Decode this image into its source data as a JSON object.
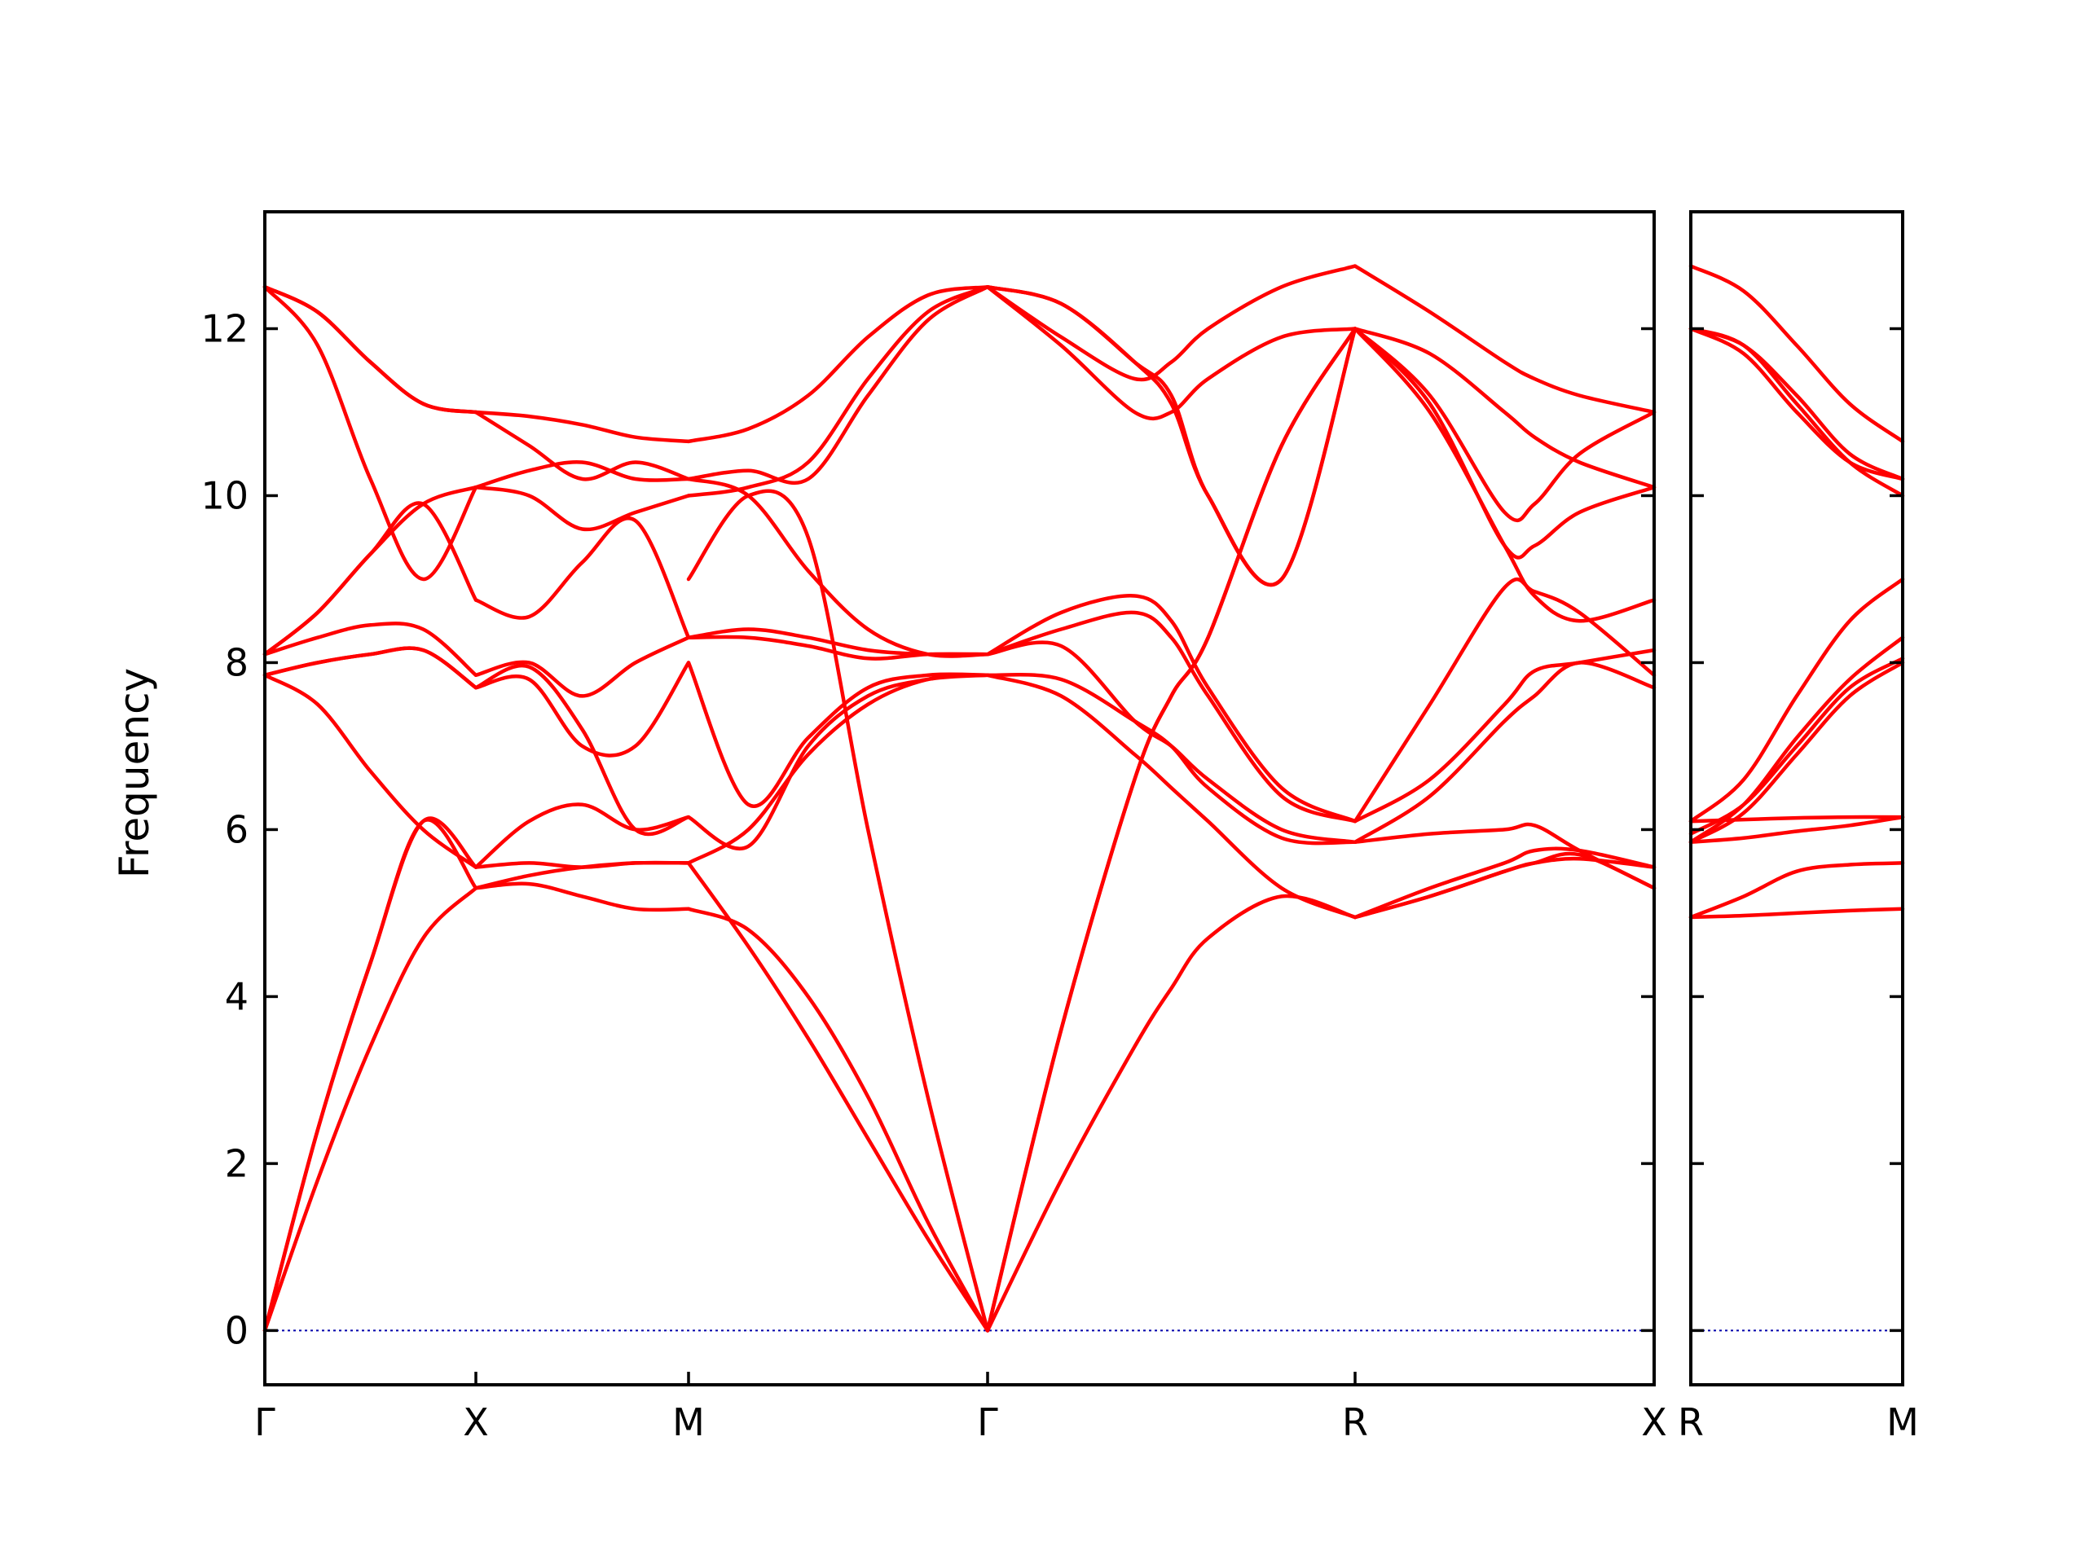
{
  "chart_data": {
    "type": "line",
    "ylabel": "Frequency",
    "xlabel": "",
    "ylim": [
      -0.65,
      13.4
    ],
    "yticks": [
      0,
      2,
      4,
      6,
      8,
      10,
      12
    ],
    "grid": false,
    "legend": "none",
    "colors": {
      "band": "#ff0000",
      "zero_line": "#0000aa",
      "frame": "#000000"
    },
    "panels": [
      {
        "id": "left",
        "x_labels": [
          "Γ",
          "X",
          "M",
          "Γ",
          "R",
          "X"
        ],
        "band_count": 12,
        "segments": [
          {
            "from": "Γ",
            "to": "X",
            "t": [
              0,
              0.25,
              0.5,
              0.75,
              1
            ],
            "bands": [
              [
                0,
                1.8,
                3.4,
                4.7,
                5.3
              ],
              [
                0,
                2.4,
                4.4,
                6.1,
                5.3
              ],
              [
                0,
                2.4,
                4.4,
                6.1,
                5.55
              ],
              [
                7.85,
                7.5,
                6.7,
                6.0,
                5.55
              ],
              [
                7.85,
                8.0,
                8.1,
                8.15,
                7.7
              ],
              [
                7.85,
                8.0,
                8.1,
                8.15,
                7.7
              ],
              [
                8.1,
                8.3,
                8.45,
                8.4,
                7.85
              ],
              [
                8.1,
                8.6,
                9.3,
                9.9,
                8.75
              ],
              [
                8.1,
                8.6,
                9.3,
                9.9,
                10.1
              ],
              [
                12.5,
                11.8,
                10.2,
                9.0,
                10.1
              ],
              [
                12.5,
                12.2,
                11.6,
                11.1,
                11.0
              ],
              [
                12.5,
                12.2,
                11.6,
                11.1,
                11.0
              ]
            ]
          },
          {
            "from": "X",
            "to": "M",
            "t": [
              0,
              0.25,
              0.5,
              0.75,
              1
            ],
            "bands": [
              [
                5.3,
                5.35,
                5.2,
                5.05,
                5.05
              ],
              [
                5.3,
                5.45,
                5.55,
                5.6,
                5.6
              ],
              [
                5.55,
                5.6,
                5.55,
                5.6,
                5.6
              ],
              [
                5.55,
                6.1,
                6.3,
                6.0,
                6.15
              ],
              [
                7.7,
                7.95,
                7.2,
                6.0,
                6.15
              ],
              [
                7.7,
                7.8,
                7.0,
                7.0,
                8.0
              ],
              [
                7.85,
                8.0,
                7.6,
                8.0,
                8.3
              ],
              [
                8.75,
                8.55,
                9.2,
                9.7,
                8.3
              ],
              [
                10.1,
                10.0,
                9.6,
                9.8,
                10.0
              ],
              [
                10.1,
                10.3,
                10.4,
                10.2,
                10.2
              ],
              [
                11.0,
                10.6,
                10.2,
                10.4,
                10.2
              ],
              [
                11.0,
                10.95,
                10.85,
                10.7,
                10.65
              ]
            ]
          },
          {
            "from": "M",
            "to": "Γ",
            "t": [
              0,
              0.2,
              0.4,
              0.6,
              0.8,
              1
            ],
            "bands": [
              [
                5.05,
                4.8,
                4.0,
                2.8,
                1.3,
                0
              ],
              [
                5.6,
                4.6,
                3.5,
                2.3,
                1.1,
                0
              ],
              [
                6.15,
                5.8,
                7.0,
                7.6,
                7.8,
                7.85
              ],
              [
                5.6,
                6.0,
                6.9,
                7.5,
                7.8,
                7.85
              ],
              [
                8.0,
                6.3,
                7.1,
                7.7,
                7.85,
                7.85
              ],
              [
                8.3,
                8.4,
                8.3,
                8.15,
                8.1,
                8.1
              ],
              [
                8.3,
                8.3,
                8.2,
                8.05,
                8.1,
                8.1
              ],
              [
                9.0,
                10.0,
                9.5,
                6.0,
                2.8,
                0
              ],
              [
                10.0,
                10.1,
                10.4,
                11.4,
                12.2,
                12.5
              ],
              [
                10.2,
                10.3,
                10.2,
                11.2,
                12.1,
                12.5
              ],
              [
                10.65,
                10.8,
                11.2,
                11.9,
                12.4,
                12.5
              ],
              [
                10.2,
                10.0,
                9.1,
                8.4,
                8.1,
                8.1
              ]
            ]
          },
          {
            "from": "Γ",
            "to": "R",
            "t": [
              0,
              0.2,
              0.4,
              0.5,
              0.6,
              0.8,
              1
            ],
            "bands": [
              [
                0,
                1.8,
                3.4,
                4.1,
                4.7,
                5.2,
                4.95
              ],
              [
                0,
                3.6,
                6.6,
                7.6,
                8.3,
                10.6,
                12.0
              ],
              [
                0,
                3.6,
                6.6,
                7.6,
                8.3,
                10.6,
                12.0
              ],
              [
                7.85,
                7.6,
                6.9,
                6.5,
                6.1,
                5.3,
                4.95
              ],
              [
                7.85,
                7.8,
                7.3,
                7.0,
                6.5,
                5.9,
                5.85
              ],
              [
                8.1,
                8.2,
                7.3,
                7.0,
                6.6,
                6.0,
                5.85
              ],
              [
                8.1,
                8.4,
                8.6,
                8.3,
                7.6,
                6.4,
                6.1
              ],
              [
                8.1,
                8.6,
                8.8,
                8.5,
                7.7,
                6.5,
                6.1
              ],
              [
                12.5,
                11.8,
                11.0,
                11.0,
                11.4,
                11.9,
                12.0
              ],
              [
                12.5,
                11.9,
                11.4,
                11.6,
                12.0,
                12.5,
                12.75
              ],
              [
                12.5,
                12.3,
                11.6,
                11.2,
                10.0,
                9.0,
                12.0
              ],
              [
                12.5,
                12.3,
                11.6,
                11.1,
                10.0,
                9.0,
                12.0
              ]
            ]
          },
          {
            "from": "R",
            "to": "X",
            "t": [
              0,
              0.25,
              0.5,
              0.6,
              0.75,
              1
            ],
            "bands": [
              [
                4.95,
                5.3,
                5.6,
                5.75,
                5.75,
                5.55
              ],
              [
                4.95,
                5.2,
                5.5,
                5.6,
                5.65,
                5.55
              ],
              [
                4.95,
                5.2,
                5.5,
                5.6,
                5.7,
                5.3
              ],
              [
                5.85,
                5.95,
                6.0,
                6.05,
                5.75,
                5.3
              ],
              [
                5.85,
                6.4,
                7.3,
                7.6,
                8.0,
                7.7
              ],
              [
                6.1,
                6.6,
                7.5,
                7.9,
                8.0,
                8.15
              ],
              [
                6.1,
                7.5,
                8.9,
                8.85,
                8.6,
                7.85
              ],
              [
                12.0,
                11.0,
                9.4,
                8.8,
                8.5,
                8.75
              ],
              [
                12.0,
                11.1,
                9.4,
                9.4,
                9.8,
                10.1
              ],
              [
                12.0,
                11.2,
                9.8,
                9.9,
                10.5,
                11.0
              ],
              [
                12.0,
                11.7,
                11.0,
                10.7,
                10.4,
                10.1
              ],
              [
                12.75,
                12.2,
                11.6,
                11.4,
                11.2,
                11.0
              ]
            ]
          }
        ]
      },
      {
        "id": "right",
        "x_labels": [
          "R",
          "M"
        ],
        "band_count": 12,
        "segments": [
          {
            "from": "R",
            "to": "M",
            "t": [
              0,
              0.25,
              0.5,
              0.75,
              1
            ],
            "bands": [
              [
                4.95,
                4.97,
                5.0,
                5.03,
                5.05
              ],
              [
                4.95,
                5.2,
                5.5,
                5.58,
                5.6
              ],
              [
                5.85,
                5.9,
                5.98,
                6.05,
                6.15
              ],
              [
                6.1,
                6.12,
                6.14,
                6.15,
                6.15
              ],
              [
                5.85,
                6.2,
                6.9,
                7.6,
                8.0
              ],
              [
                5.85,
                6.3,
                7.1,
                7.8,
                8.3
              ],
              [
                6.1,
                6.6,
                7.6,
                8.5,
                9.0
              ],
              [
                5.95,
                6.3,
                7.0,
                7.7,
                8.05
              ],
              [
                12.0,
                11.8,
                11.1,
                10.4,
                10.0
              ],
              [
                12.0,
                11.8,
                11.2,
                10.5,
                10.2
              ],
              [
                12.0,
                11.7,
                11.0,
                10.4,
                10.2
              ],
              [
                12.75,
                12.45,
                11.8,
                11.1,
                10.65
              ]
            ]
          }
        ]
      }
    ]
  }
}
